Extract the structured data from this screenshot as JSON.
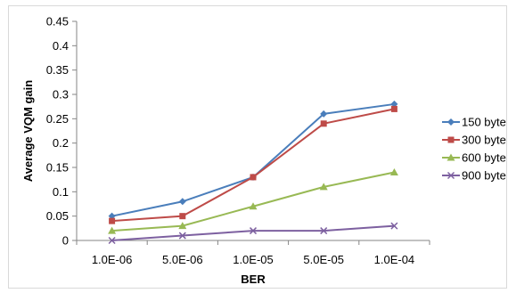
{
  "chart_data": {
    "type": "line",
    "title": "",
    "xlabel": "BER",
    "ylabel": "Average VQM gain",
    "categories": [
      "1.0E-06",
      "5.0E-06",
      "1.0E-05",
      "5.0E-05",
      "1.0E-04"
    ],
    "ylim": [
      0,
      0.45
    ],
    "yticks": [
      0,
      0.05,
      0.1,
      0.15,
      0.2,
      0.25,
      0.3,
      0.35,
      0.4,
      0.45
    ],
    "ytick_labels": [
      "0",
      "0.05",
      "0.1",
      "0.15",
      "0.2",
      "0.25",
      "0.3",
      "0.35",
      "0.4",
      "0.45"
    ],
    "grid": false,
    "legend_position": "right",
    "series": [
      {
        "name": "150 byte",
        "values": [
          0.05,
          0.08,
          0.13,
          0.26,
          0.28
        ],
        "color": "#4a7ebb",
        "marker": "diamond"
      },
      {
        "name": "300 byte",
        "values": [
          0.04,
          0.05,
          0.13,
          0.24,
          0.27
        ],
        "color": "#be4b48",
        "marker": "square"
      },
      {
        "name": "600 byte",
        "values": [
          0.02,
          0.03,
          0.07,
          0.11,
          0.14
        ],
        "color": "#98b954",
        "marker": "triangle"
      },
      {
        "name": "900 byte",
        "values": [
          0.0,
          0.01,
          0.02,
          0.02,
          0.03
        ],
        "color": "#7d60a0",
        "marker": "x"
      }
    ]
  }
}
